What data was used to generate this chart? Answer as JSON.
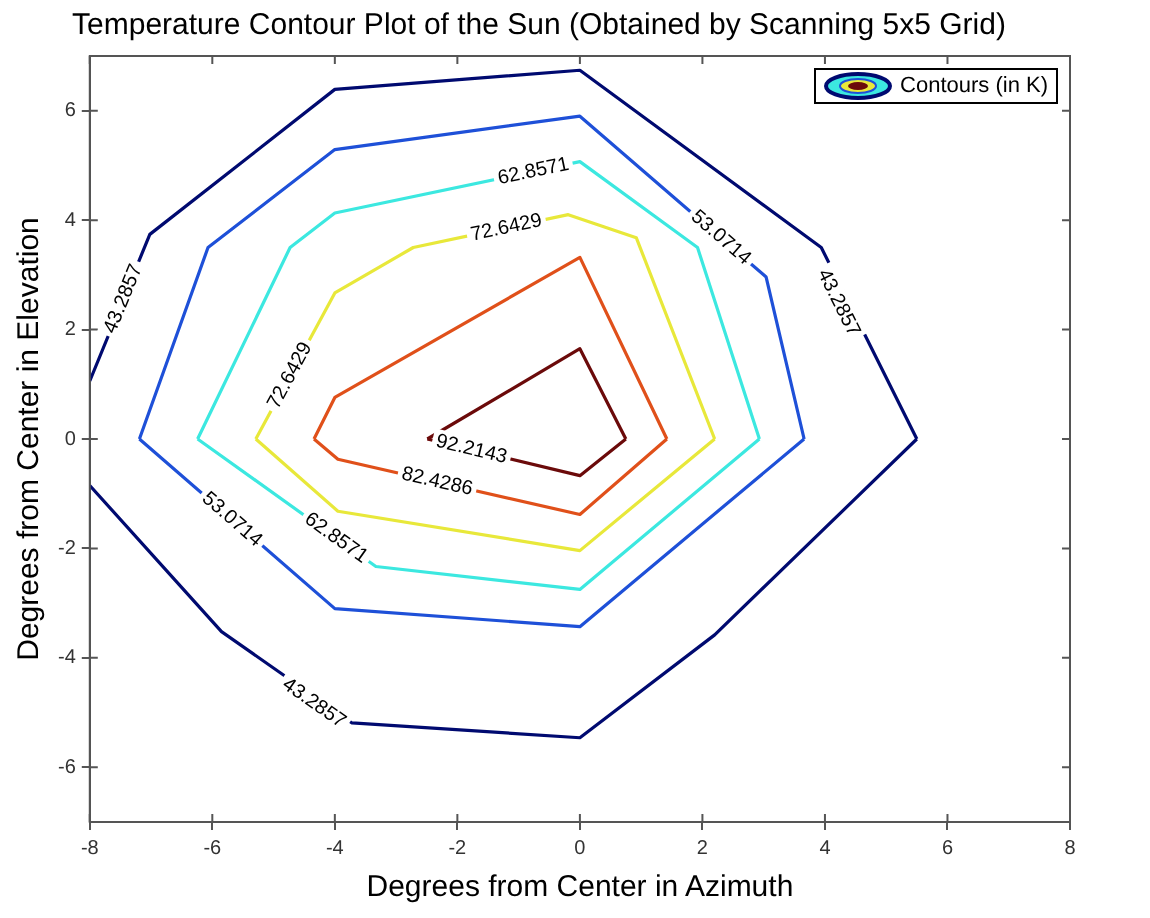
{
  "chart_data": {
    "type": "line",
    "title": "Temperature Contour Plot of the Sun (Obtained by Scanning 5x5 Grid)",
    "xlabel": "Degrees from Center in Azimuth",
    "ylabel": "Degrees from Center in Elevation",
    "legend_title": "Contours (in K)",
    "grid": false,
    "marker": "none",
    "line_style": "solid",
    "xlim": [
      -8,
      8
    ],
    "xticks": [
      -8,
      -6,
      -4,
      -2,
      0,
      2,
      4,
      6,
      8
    ],
    "ylim": [
      -7,
      7
    ],
    "yticks": [
      -6,
      -4,
      -2,
      0,
      2,
      4,
      6
    ],
    "series": [
      {
        "color": "#000a70",
        "x": [
          -8,
          -7.02,
          -4,
          0,
          3.94,
          5.5
        ],
        "values": [
          1.06,
          3.74,
          6.39,
          6.74,
          3.5,
          0
        ]
      },
      {
        "color": "#000a70",
        "x": [
          -8,
          -5.85,
          -3.72,
          0,
          2.2,
          5.5
        ],
        "values": [
          -0.85,
          -3.52,
          -5.19,
          -5.46,
          -3.58,
          0
        ]
      },
      {
        "color": "#1e50d8",
        "x": [
          -7.19,
          -6.07,
          -4,
          0,
          3.04,
          3.66
        ],
        "values": [
          0,
          3.5,
          5.29,
          5.9,
          2.96,
          0
        ]
      },
      {
        "color": "#1e50d8",
        "x": [
          -7.19,
          -4,
          0,
          3.66
        ],
        "values": [
          0,
          -3.1,
          -3.43,
          0
        ]
      },
      {
        "color": "#3ce8e0",
        "x": [
          -6.24,
          -4.73,
          -4,
          0,
          1.92,
          2.93
        ],
        "values": [
          0,
          3.5,
          4.13,
          5.07,
          3.5,
          0
        ]
      },
      {
        "color": "#3ce8e0",
        "x": [
          -6.24,
          -3.33,
          0,
          2.93
        ],
        "values": [
          0,
          -2.33,
          -2.75,
          0
        ]
      },
      {
        "color": "#e8e83a",
        "x": [
          -5.29,
          -4,
          -2.72,
          -0.19,
          0.92,
          2.2
        ],
        "values": [
          0,
          2.67,
          3.5,
          4.1,
          3.68,
          0
        ]
      },
      {
        "color": "#e8e83a",
        "x": [
          -5.29,
          -3.95,
          0,
          2.2
        ],
        "values": [
          0,
          -1.32,
          -2.04,
          0
        ]
      },
      {
        "color": "#e0501a",
        "x": [
          -4.34,
          -4,
          0,
          1.42
        ],
        "values": [
          0,
          0.76,
          3.32,
          0
        ]
      },
      {
        "color": "#e0501a",
        "x": [
          -4.34,
          -3.95,
          0,
          1.42
        ],
        "values": [
          0,
          -0.37,
          -1.38,
          0
        ]
      },
      {
        "color": "#6b0a0a",
        "x": [
          -2.49,
          0,
          0.75
        ],
        "values": [
          0,
          1.65,
          0
        ]
      },
      {
        "color": "#6b0a0a",
        "x": [
          -2.49,
          0,
          0.75
        ],
        "values": [
          0,
          -0.67,
          0
        ]
      }
    ],
    "annotations": [
      {
        "text": "43.2857",
        "x": -7.45,
        "y": 2.56
      },
      {
        "text": "43.2857",
        "x": 4.22,
        "y": 2.49
      },
      {
        "text": "43.2857",
        "x": -4.34,
        "y": -4.83
      },
      {
        "text": "53.0714",
        "x": 2.3,
        "y": 3.68
      },
      {
        "text": "53.0714",
        "x": -5.68,
        "y": -1.47
      },
      {
        "text": "62.8571",
        "x": -0.76,
        "y": 4.89
      },
      {
        "text": "62.8571",
        "x": -3.98,
        "y": -1.81
      },
      {
        "text": "72.6429",
        "x": -1.2,
        "y": 3.86
      },
      {
        "text": "72.6429",
        "x": -4.73,
        "y": 1.16
      },
      {
        "text": "82.4286",
        "x": -2.33,
        "y": -0.78
      },
      {
        "text": "92.2143",
        "x": -1.77,
        "y": -0.19
      }
    ]
  }
}
